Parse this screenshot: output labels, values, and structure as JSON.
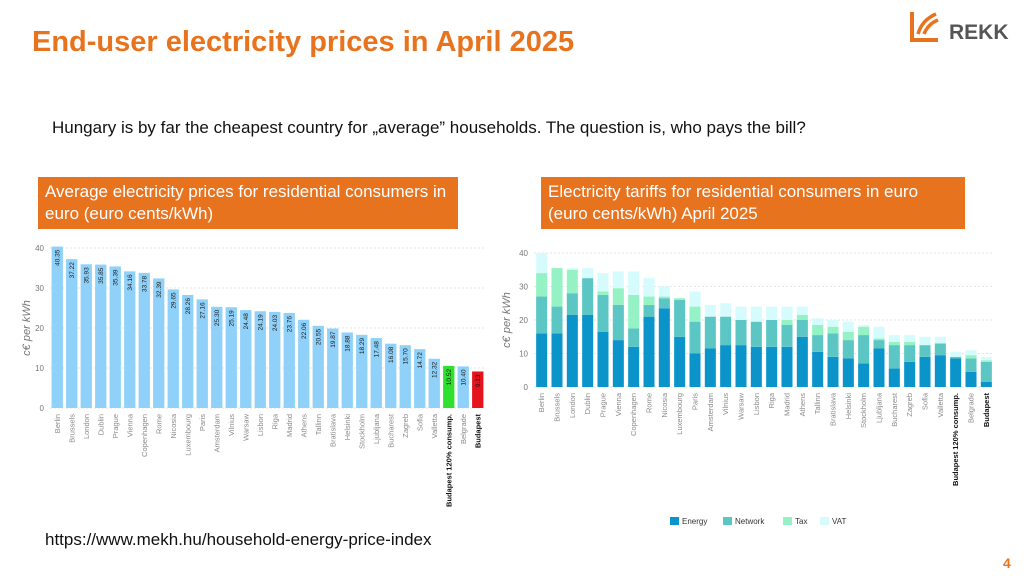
{
  "slide": {
    "title": "End-user electricity prices in April 2025",
    "subtitle": "Hungary is by far the cheapest country for „average” households. The question is, who pays the bill?",
    "source": "https://www.mekh.hu/household-energy-price-index",
    "page_number": "4",
    "logo_text": "REKK"
  },
  "colors": {
    "accent": "#E8731F",
    "bar_default": "#8FD1F9",
    "bar_green": "#2FE02F",
    "bar_red": "#E3141C",
    "energy": "#0A94C9",
    "network": "#5BC6C3",
    "tax": "#94F2C4",
    "vat": "#D6FBFD"
  },
  "chart_data": [
    {
      "type": "bar",
      "heading": "Average electricity prices for residential consumers in euro (euro cents/kWh)",
      "ylabel": "c€ per kWh",
      "ylim": [
        0,
        40
      ],
      "yticks": [
        0,
        10,
        20,
        30,
        40
      ],
      "categories": [
        "Berlin",
        "Brussels",
        "London",
        "Dublin",
        "Prague",
        "Vienna",
        "Copenhagen",
        "Rome",
        "Nicosia",
        "Luxembourg",
        "Paris",
        "Amsterdam",
        "Vilnius",
        "Warsaw",
        "Lisbon",
        "Riga",
        "Madrid",
        "Athens",
        "Tallinn",
        "Bratislava",
        "Helsinki",
        "Stockholm",
        "Ljubljana",
        "Bucharest",
        "Zagreb",
        "Sofia",
        "Valletta",
        "Budapest 120% consump.",
        "Belgrade",
        "Budapest"
      ],
      "values": [
        40.35,
        37.22,
        35.93,
        35.85,
        35.39,
        34.16,
        33.78,
        32.39,
        29.65,
        28.26,
        27.16,
        25.3,
        25.19,
        24.48,
        24.19,
        24.03,
        23.76,
        22.06,
        20.55,
        19.87,
        18.88,
        18.29,
        17.48,
        16.08,
        15.7,
        14.72,
        12.32,
        10.52,
        10.4,
        9.13
      ],
      "value_labels": [
        "40.35",
        "37.22",
        "35.93",
        "35.85",
        "35.39",
        "34.16",
        "33.78",
        "32.39",
        "29.65",
        "28.26",
        "27.16",
        "25.30",
        "25.19",
        "24.48",
        "24.19",
        "24.03",
        "23.76",
        "22.06",
        "20.55",
        "19.87",
        "18.88",
        "18.29",
        "17.48",
        "16.08",
        "15.70",
        "14.72",
        "12.32",
        "10.52",
        "10.40",
        "9.13"
      ],
      "highlight": {
        "Budapest 120% consump.": "green",
        "Budapest": "red"
      },
      "bold_categories": [
        "Budapest 120% consump.",
        "Budapest"
      ]
    },
    {
      "type": "bar",
      "stacked": true,
      "heading": "Electricity tariffs for residential consumers in euro (euro cents/kWh) April 2025",
      "ylabel": "c€ per kWh",
      "ylim": [
        0,
        40
      ],
      "yticks": [
        0,
        10,
        20,
        30,
        40
      ],
      "categories": [
        "Berlin",
        "Brussels",
        "London",
        "Dublin",
        "Prague",
        "Vienna",
        "Copenhagen",
        "Rome",
        "Nicosia",
        "Luxembourg",
        "Paris",
        "Amsterdam",
        "Vilnius",
        "Warsaw",
        "Lisbon",
        "Riga",
        "Madrid",
        "Athens",
        "Tallinn",
        "Bratislava",
        "Helsinki",
        "Stockholm",
        "Ljubljana",
        "Bucharest",
        "Zagreb",
        "Sofia",
        "Valletta",
        "Budapest 120% consump.",
        "Belgrade",
        "Budapest"
      ],
      "series": [
        {
          "name": "Energy",
          "values": [
            16,
            16,
            21.5,
            21.5,
            16.5,
            14,
            12,
            21,
            23.5,
            15,
            10,
            11.5,
            12.5,
            12.5,
            12,
            12,
            12,
            15,
            10.5,
            9,
            8.5,
            7,
            11.5,
            5.5,
            7.5,
            9,
            9.5,
            8.5,
            4.5,
            1.5
          ]
        },
        {
          "name": "Network",
          "values": [
            11,
            8,
            6.5,
            11,
            11,
            10.5,
            5.5,
            3.5,
            3,
            11,
            9.5,
            9.5,
            8.5,
            7.5,
            7.5,
            8,
            6.5,
            5,
            5,
            7,
            5.5,
            8.5,
            2.5,
            7,
            5,
            3.5,
            3.5,
            0.5,
            4,
            6
          ]
        },
        {
          "name": "Tax",
          "values": [
            7,
            11.5,
            7,
            0,
            1,
            5,
            10,
            2.5,
            0.5,
            0.5,
            4.5,
            0,
            0,
            0,
            0,
            0,
            1.5,
            1.5,
            3,
            2,
            2.5,
            2.5,
            0.5,
            1,
            1,
            0,
            0,
            0,
            1,
            0.5
          ]
        },
        {
          "name": "VAT",
          "values": [
            6,
            0,
            0.5,
            3,
            5.5,
            5,
            7,
            5.5,
            3,
            0,
            4.5,
            3.5,
            4,
            4,
            4.5,
            4,
            4,
            2.5,
            2,
            2,
            3,
            0.5,
            3.5,
            2,
            2,
            2.5,
            2,
            1.5,
            1.5,
            1
          ]
        }
      ],
      "bold_categories": [
        "Budapest 120% consump.",
        "Budapest"
      ],
      "legend_position": "bottom"
    }
  ]
}
